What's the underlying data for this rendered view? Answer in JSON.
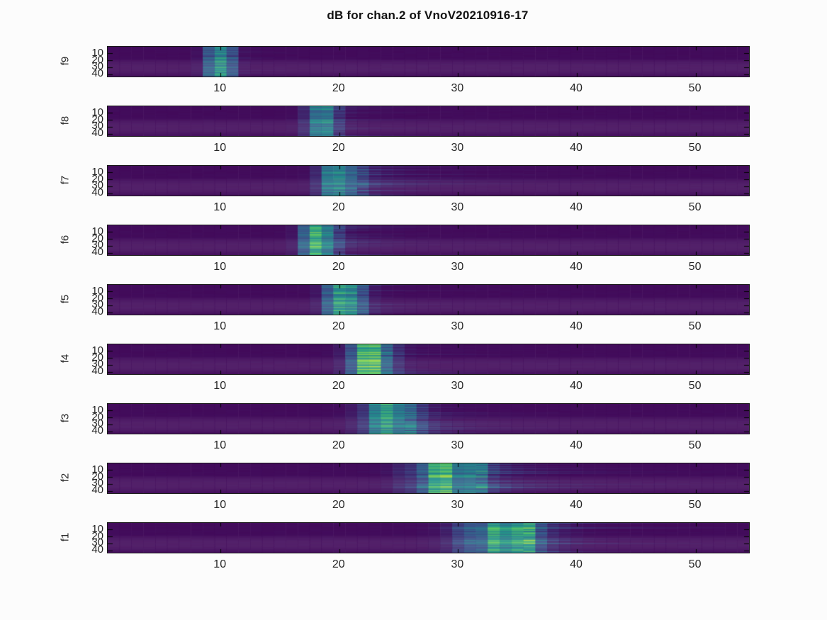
{
  "title": "dB for chan.2 of VnoV20210916-17",
  "colors": {
    "background": "#fcfcfc",
    "axis_line": "#1a1a1a",
    "tick_mark": "#000000",
    "tick_label": "#262626",
    "title_text": "#111111",
    "heatmap_low": "#440154",
    "heatmap_high": "#fde725"
  },
  "chart_data": {
    "type": "heatmap",
    "description": "Nine vertically stacked spectrogram-style heatmap panels (viridis colormap, dark purple background), one per band f9 (top) through f1 (bottom). Each panel shows a bright vertical energy blob whose time position increases as band number decreases, with faint horizontal streak tails extending to the right.",
    "colormap": "viridis",
    "colormap_stops": [
      "#440154",
      "#3b528b",
      "#21918c",
      "#5ec962",
      "#fde725"
    ],
    "x_range": [
      0.5,
      54.5
    ],
    "y_range": [
      0.5,
      43.5
    ],
    "x_ticks": [
      10,
      20,
      30,
      40,
      50
    ],
    "y_ticks": [
      10,
      20,
      30,
      40
    ],
    "grid": false,
    "legend": false,
    "colorbar": false,
    "panels": [
      {
        "label": "f9",
        "blob_center_x": 9.9,
        "blob_sigma": 0.7,
        "tail_end_x": 14,
        "tail_strength": 0.15,
        "pre_streak": 0.3,
        "peak": 1.0
      },
      {
        "label": "f8",
        "blob_center_x": 18.4,
        "blob_sigma": 0.8,
        "tail_end_x": 26,
        "tail_strength": 0.25,
        "pre_streak": 0.3,
        "peak": 0.95
      },
      {
        "label": "f7",
        "blob_center_x": 20.1,
        "blob_sigma": 1.0,
        "tail_end_x": 32,
        "tail_strength": 0.35,
        "pre_streak": 0.3,
        "peak": 0.92
      },
      {
        "label": "f6",
        "blob_center_x": 18.1,
        "blob_sigma": 0.9,
        "tail_end_x": 26,
        "tail_strength": 0.3,
        "pre_streak": 0.3,
        "peak": 0.92
      },
      {
        "label": "f5",
        "blob_center_x": 20.5,
        "blob_sigma": 1.0,
        "tail_end_x": 27,
        "tail_strength": 0.25,
        "pre_streak": 0.3,
        "peak": 1.0
      },
      {
        "label": "f4",
        "blob_center_x": 22.6,
        "blob_sigma": 1.1,
        "tail_end_x": 31,
        "tail_strength": 0.3,
        "pre_streak": 0.5,
        "peak": 0.92
      },
      {
        "label": "f3",
        "blob_center_x": 24.3,
        "blob_sigma": 1.4,
        "tail_end_x": 34,
        "tail_strength": 0.35,
        "pre_streak": 0.5,
        "peak": 0.88
      },
      {
        "label": "f2",
        "blob_center_x": 29.2,
        "blob_sigma": 1.9,
        "tail_end_x": 40,
        "tail_strength": 0.45,
        "pre_streak": 1.0,
        "peak": 0.95
      },
      {
        "label": "f1",
        "blob_center_x": 33.6,
        "blob_sigma": 2.2,
        "tail_end_x": 44,
        "tail_strength": 0.45,
        "pre_streak": 1.0,
        "peak": 0.92
      }
    ]
  }
}
